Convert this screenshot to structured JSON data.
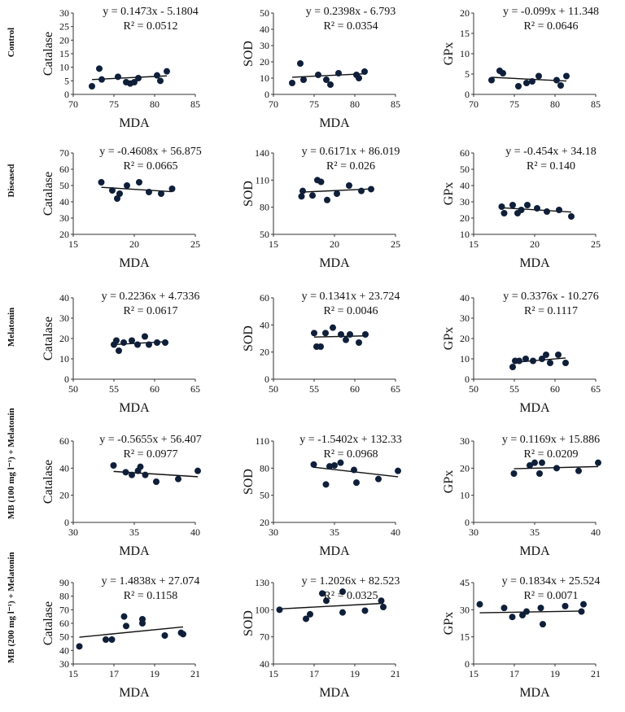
{
  "chart_data": [
    {
      "type": "scatter",
      "row": 0,
      "col": 0,
      "xlabel": "MDA",
      "ylabel": "Catalase",
      "xlim": [
        70,
        85
      ],
      "xticks": [
        70,
        75,
        80,
        85
      ],
      "ylim": [
        0,
        30
      ],
      "yticks": [
        0,
        5,
        10,
        15,
        20,
        25,
        30
      ],
      "equation": "y = 0.1473x - 5.1804",
      "r2": "R² = 0.0512",
      "slope": 0.1473,
      "intercept": -5.1804,
      "points": [
        [
          72.3,
          3.0
        ],
        [
          73.2,
          9.5
        ],
        [
          73.5,
          5.5
        ],
        [
          75.5,
          6.5
        ],
        [
          76.5,
          4.5
        ],
        [
          77.0,
          4.0
        ],
        [
          77.5,
          4.5
        ],
        [
          78.0,
          6.0
        ],
        [
          80.3,
          7.0
        ],
        [
          80.7,
          5.0
        ],
        [
          81.5,
          8.5
        ]
      ]
    },
    {
      "type": "scatter",
      "row": 0,
      "col": 1,
      "xlabel": "MDA",
      "ylabel": "SOD",
      "xlim": [
        70,
        85
      ],
      "xticks": [
        70,
        75,
        80,
        85
      ],
      "ylim": [
        0,
        50
      ],
      "yticks": [
        0,
        10,
        20,
        30,
        40,
        50
      ],
      "equation": "y = 0.2398x - 6.793",
      "r2": "R² = 0.0354",
      "slope": 0.2398,
      "intercept": -6.793,
      "points": [
        [
          72.3,
          7
        ],
        [
          73.3,
          19
        ],
        [
          73.7,
          9
        ],
        [
          75.5,
          12
        ],
        [
          76.5,
          9
        ],
        [
          77.0,
          6
        ],
        [
          78.0,
          13
        ],
        [
          80.2,
          12
        ],
        [
          80.5,
          10
        ],
        [
          81.2,
          14
        ]
      ]
    },
    {
      "type": "scatter",
      "row": 0,
      "col": 2,
      "xlabel": "",
      "ylabel": "GPx",
      "xlim": [
        70,
        85
      ],
      "xticks": [
        70,
        75,
        80,
        85
      ],
      "ylim": [
        0,
        20
      ],
      "yticks": [
        0,
        5,
        10,
        15,
        20
      ],
      "equation": "y = -0.099x + 11.348",
      "r2": "R² = 0.0646",
      "slope": -0.099,
      "intercept": 11.348,
      "points": [
        [
          72.2,
          3.5
        ],
        [
          73.2,
          5.8
        ],
        [
          73.6,
          5.2
        ],
        [
          75.5,
          2.0
        ],
        [
          76.5,
          2.8
        ],
        [
          77.2,
          3.2
        ],
        [
          78.0,
          4.5
        ],
        [
          80.2,
          3.5
        ],
        [
          80.7,
          2.2
        ],
        [
          81.4,
          4.5
        ]
      ]
    },
    {
      "type": "scatter",
      "row": 1,
      "col": 0,
      "xlabel": "MDA",
      "ylabel": "Catalase",
      "xlim": [
        15,
        25
      ],
      "xticks": [
        15,
        20,
        25
      ],
      "ylim": [
        20,
        70
      ],
      "yticks": [
        20,
        30,
        40,
        50,
        60,
        70
      ],
      "equation": "y = -0.4608x + 56.875",
      "r2": "R² = 0.0665",
      "slope": -0.4608,
      "intercept": 56.875,
      "points": [
        [
          17.3,
          52
        ],
        [
          18.2,
          47
        ],
        [
          18.6,
          42
        ],
        [
          18.8,
          45
        ],
        [
          19.4,
          50
        ],
        [
          20.4,
          52
        ],
        [
          21.2,
          46
        ],
        [
          22.2,
          45
        ],
        [
          23.1,
          48
        ]
      ]
    },
    {
      "type": "scatter",
      "row": 1,
      "col": 1,
      "xlabel": "MDA",
      "ylabel": "SOD",
      "xlim": [
        15,
        25
      ],
      "xticks": [
        15,
        20,
        25
      ],
      "ylim": [
        50,
        140
      ],
      "yticks": [
        50,
        80,
        110,
        140
      ],
      "equation": "y = 0.6171x + 86.019",
      "r2": "R² = 0.026",
      "slope": 0.6171,
      "intercept": 86.019,
      "points": [
        [
          17.3,
          92
        ],
        [
          17.4,
          98
        ],
        [
          18.2,
          93
        ],
        [
          18.6,
          110
        ],
        [
          18.9,
          108
        ],
        [
          19.4,
          88
        ],
        [
          20.2,
          95
        ],
        [
          21.2,
          104
        ],
        [
          22.2,
          98
        ],
        [
          23.0,
          100
        ]
      ]
    },
    {
      "type": "scatter",
      "row": 1,
      "col": 2,
      "xlabel": "MDA",
      "ylabel": "GPx",
      "xlim": [
        15,
        25
      ],
      "xticks": [
        15,
        20,
        25
      ],
      "ylim": [
        10,
        60
      ],
      "yticks": [
        10,
        20,
        30,
        40,
        50,
        60
      ],
      "equation": "y = -0.454x + 34.18",
      "r2": "R² = 0.140",
      "slope": -0.454,
      "intercept": 34.18,
      "points": [
        [
          17.3,
          27
        ],
        [
          17.5,
          23
        ],
        [
          18.2,
          28
        ],
        [
          18.6,
          23
        ],
        [
          18.9,
          25
        ],
        [
          19.4,
          28
        ],
        [
          20.2,
          26
        ],
        [
          21.0,
          24
        ],
        [
          22.0,
          25
        ],
        [
          23.0,
          21
        ]
      ]
    },
    {
      "type": "scatter",
      "row": 2,
      "col": 0,
      "xlabel": "MDA",
      "ylabel": "Catalase",
      "xlim": [
        50,
        65
      ],
      "xticks": [
        50,
        55,
        60,
        65
      ],
      "ylim": [
        0,
        40
      ],
      "yticks": [
        0,
        10,
        20,
        30,
        40
      ],
      "equation": "y = 0.2236x + 4.7336",
      "r2": "R² = 0.0617",
      "slope": 0.2236,
      "intercept": 4.7336,
      "points": [
        [
          55.0,
          17
        ],
        [
          55.3,
          19
        ],
        [
          55.6,
          14
        ],
        [
          56.2,
          18
        ],
        [
          57.2,
          19
        ],
        [
          57.9,
          17
        ],
        [
          58.8,
          21
        ],
        [
          59.3,
          17
        ],
        [
          60.3,
          18
        ],
        [
          61.3,
          18
        ]
      ]
    },
    {
      "type": "scatter",
      "row": 2,
      "col": 1,
      "xlabel": "",
      "ylabel": "SOD",
      "xlim": [
        50,
        65
      ],
      "xticks": [
        50,
        55,
        60,
        65
      ],
      "ylim": [
        0,
        60
      ],
      "yticks": [
        0,
        20,
        40,
        60
      ],
      "equation": "y = 0.1341x + 23.724",
      "r2": "R² = 0.0046",
      "slope": 0.1341,
      "intercept": 23.724,
      "points": [
        [
          55.0,
          34
        ],
        [
          55.3,
          24
        ],
        [
          55.8,
          24
        ],
        [
          56.4,
          34
        ],
        [
          57.3,
          38
        ],
        [
          58.3,
          33
        ],
        [
          58.9,
          29
        ],
        [
          59.4,
          33
        ],
        [
          60.5,
          27
        ],
        [
          61.3,
          33
        ]
      ]
    },
    {
      "type": "scatter",
      "row": 2,
      "col": 2,
      "xlabel": "MDA",
      "ylabel": "GPx",
      "xlim": [
        50,
        65
      ],
      "xticks": [
        50,
        55,
        60,
        65
      ],
      "ylim": [
        0,
        40
      ],
      "yticks": [
        0,
        10,
        20,
        30,
        40
      ],
      "equation": "y = 0.3376x - 10.276",
      "r2": "R² = 0.1117",
      "slope": 0.3376,
      "intercept": -10.276,
      "points": [
        [
          54.8,
          6
        ],
        [
          55.1,
          9
        ],
        [
          55.6,
          9
        ],
        [
          56.4,
          10
        ],
        [
          57.3,
          9
        ],
        [
          58.4,
          10
        ],
        [
          58.9,
          12
        ],
        [
          59.4,
          8
        ],
        [
          60.4,
          12
        ],
        [
          61.3,
          8
        ]
      ]
    },
    {
      "type": "scatter",
      "row": 3,
      "col": 0,
      "xlabel": "MDA",
      "ylabel": "Catalase",
      "xlim": [
        30,
        40
      ],
      "xticks": [
        30,
        35,
        40
      ],
      "ylim": [
        0,
        60
      ],
      "yticks": [
        0,
        20,
        40,
        60
      ],
      "equation": "y = -0.5655x + 56.407",
      "r2": "R² = 0.0977",
      "slope": -0.5655,
      "intercept": 56.407,
      "points": [
        [
          33.3,
          42
        ],
        [
          34.3,
          37
        ],
        [
          34.8,
          35
        ],
        [
          35.3,
          38
        ],
        [
          35.5,
          41
        ],
        [
          35.9,
          35
        ],
        [
          36.8,
          30
        ],
        [
          38.6,
          32
        ],
        [
          40.2,
          38
        ]
      ]
    },
    {
      "type": "scatter",
      "row": 3,
      "col": 1,
      "xlabel": "MDA",
      "ylabel": "SOD",
      "xlim": [
        30,
        40
      ],
      "xticks": [
        30,
        35,
        40
      ],
      "ylim": [
        20,
        110
      ],
      "yticks": [
        20,
        50,
        80,
        110
      ],
      "equation": "y = -1.5402x + 132.33",
      "r2": "R² = 0.0968",
      "slope": -1.5402,
      "intercept": 132.33,
      "points": [
        [
          33.3,
          84
        ],
        [
          34.3,
          62
        ],
        [
          34.6,
          82
        ],
        [
          35.0,
          83
        ],
        [
          35.5,
          86
        ],
        [
          36.6,
          78
        ],
        [
          36.8,
          64
        ],
        [
          38.6,
          68
        ],
        [
          40.2,
          77
        ]
      ]
    },
    {
      "type": "scatter",
      "row": 3,
      "col": 2,
      "xlabel": "MDA",
      "ylabel": "GPx",
      "xlim": [
        30,
        40
      ],
      "xticks": [
        30,
        35,
        40
      ],
      "ylim": [
        0,
        30
      ],
      "yticks": [
        0,
        10,
        20,
        30
      ],
      "equation": "y = 0.1169x + 15.886",
      "r2": "R² = 0.0209",
      "slope": 0.1169,
      "intercept": 15.886,
      "points": [
        [
          33.3,
          18
        ],
        [
          34.6,
          21
        ],
        [
          35.0,
          22
        ],
        [
          35.4,
          18
        ],
        [
          35.6,
          22
        ],
        [
          36.8,
          20
        ],
        [
          38.6,
          19
        ],
        [
          40.2,
          22
        ]
      ]
    },
    {
      "type": "scatter",
      "row": 4,
      "col": 0,
      "xlabel": "MDA",
      "ylabel": "Catalase",
      "xlim": [
        15,
        21
      ],
      "xticks": [
        15,
        17,
        19,
        21
      ],
      "ylim": [
        30,
        90
      ],
      "yticks": [
        30,
        40,
        50,
        60,
        70,
        80,
        90
      ],
      "equation": "y = 1.4838x + 27.074",
      "r2": "R² = 0.1158",
      "slope": 1.4838,
      "intercept": 27.074,
      "points": [
        [
          15.3,
          43
        ],
        [
          16.6,
          48
        ],
        [
          16.9,
          48
        ],
        [
          17.5,
          65
        ],
        [
          17.6,
          58
        ],
        [
          18.4,
          60
        ],
        [
          18.4,
          63
        ],
        [
          19.5,
          51
        ],
        [
          20.3,
          53
        ],
        [
          20.4,
          52
        ]
      ]
    },
    {
      "type": "scatter",
      "row": 4,
      "col": 1,
      "xlabel": "MDA",
      "ylabel": "SOD",
      "xlim": [
        15,
        21
      ],
      "xticks": [
        15,
        17,
        19,
        21
      ],
      "ylim": [
        40,
        130
      ],
      "yticks": [
        40,
        70,
        100,
        130
      ],
      "equation": "y = 1.2026x + 82.523",
      "r2": "R² = 0.0325",
      "slope": 1.2026,
      "intercept": 82.523,
      "points": [
        [
          15.3,
          100
        ],
        [
          16.6,
          90
        ],
        [
          16.8,
          95
        ],
        [
          17.4,
          118
        ],
        [
          17.6,
          110
        ],
        [
          18.4,
          120
        ],
        [
          18.4,
          97
        ],
        [
          19.5,
          99
        ],
        [
          20.3,
          110
        ],
        [
          20.4,
          103
        ]
      ]
    },
    {
      "type": "scatter",
      "row": 4,
      "col": 2,
      "xlabel": "MDA",
      "ylabel": "GPx",
      "xlim": [
        15,
        21
      ],
      "xticks": [
        15,
        17,
        19,
        21
      ],
      "ylim": [
        0,
        45
      ],
      "yticks": [
        0,
        15,
        30,
        45
      ],
      "equation": "y = 0.1834x + 25.524",
      "r2": "R² = 0.0071",
      "slope": 0.1834,
      "intercept": 25.524,
      "points": [
        [
          15.3,
          33
        ],
        [
          16.5,
          31
        ],
        [
          16.9,
          26
        ],
        [
          17.4,
          27
        ],
        [
          17.6,
          29
        ],
        [
          18.3,
          31
        ],
        [
          18.4,
          22
        ],
        [
          19.5,
          32
        ],
        [
          20.3,
          29
        ],
        [
          20.4,
          33
        ]
      ]
    }
  ],
  "row_labels": [
    "Control",
    "Diseased",
    "Melatonin",
    "MB (100 mg l⁻¹) + Melatonin",
    "MB (200 mg l⁻¹) + Melatonin"
  ],
  "colors": {
    "points": "#0f1f3a",
    "axes": "#333333",
    "line": "#111111"
  }
}
